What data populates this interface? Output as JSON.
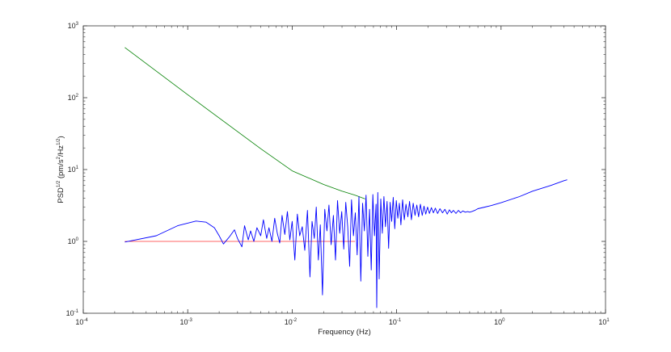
{
  "chart_data": {
    "type": "line",
    "title": "",
    "xlabel": "Frequency (Hz)",
    "ylabel": {
      "t1": "PSD",
      "t1_sup": "1/2",
      "t2": " (pm/s",
      "t2_sup": "2",
      "t3": "/Hz",
      "t3_sup": "1/2",
      "t4": ")"
    },
    "xscale": "log",
    "yscale": "log",
    "xlim": [
      0.0001,
      10
    ],
    "ylim": [
      0.1,
      1000
    ],
    "grid": false,
    "x_ticks": [
      {
        "base": "10",
        "exp": "-4",
        "value": 0.0001
      },
      {
        "base": "10",
        "exp": "-3",
        "value": 0.001
      },
      {
        "base": "10",
        "exp": "-2",
        "value": 0.01
      },
      {
        "base": "10",
        "exp": "-1",
        "value": 0.1
      },
      {
        "base": "10",
        "exp": "0",
        "value": 1
      },
      {
        "base": "10",
        "exp": "1",
        "value": 10
      }
    ],
    "y_ticks": [
      {
        "base": "10",
        "exp": "-1",
        "value": 0.1
      },
      {
        "base": "10",
        "exp": "0",
        "value": 1
      },
      {
        "base": "10",
        "exp": "1",
        "value": 10
      },
      {
        "base": "10",
        "exp": "2",
        "value": 100
      },
      {
        "base": "10",
        "exp": "3",
        "value": 1000
      }
    ],
    "series": [
      {
        "color": "#008000",
        "x": [
          0.00025,
          0.001,
          0.005,
          0.01,
          0.02,
          0.03,
          0.04,
          0.05
        ],
        "y": [
          500,
          110,
          19.5,
          9.6,
          6.2,
          5.0,
          4.4,
          3.9
        ]
      },
      {
        "color": "#ff3333",
        "x": [
          0.00025,
          0.04
        ],
        "y": [
          1.0,
          1.0
        ]
      },
      {
        "color": "#0000ff",
        "x": [
          0.00025,
          0.0005,
          0.0008,
          0.0012,
          0.0015,
          0.0018,
          0.002,
          0.0022,
          0.0025,
          0.0028,
          0.003,
          0.0033,
          0.0035,
          0.0038,
          0.004,
          0.0043,
          0.0046,
          0.005,
          0.0053,
          0.0057,
          0.006,
          0.0064,
          0.0068,
          0.0072,
          0.0076,
          0.008,
          0.0085,
          0.009,
          0.0095,
          0.01,
          0.0106,
          0.0112,
          0.0118,
          0.0125,
          0.0132,
          0.014,
          0.0148,
          0.0155,
          0.0163,
          0.017,
          0.0178,
          0.0186,
          0.0195,
          0.0205,
          0.0215,
          0.0225,
          0.0236,
          0.0248,
          0.026,
          0.0272,
          0.0285,
          0.0298,
          0.0312,
          0.0326,
          0.034,
          0.0355,
          0.037,
          0.0386,
          0.0402,
          0.0419,
          0.0436,
          0.0454,
          0.0472,
          0.0491,
          0.051,
          0.053,
          0.055,
          0.0571,
          0.0592,
          0.0614,
          0.0636,
          0.0645,
          0.066,
          0.068,
          0.0705,
          0.073,
          0.0756,
          0.0782,
          0.081,
          0.0838,
          0.0867,
          0.0897,
          0.0928,
          0.096,
          0.0993,
          0.1027,
          0.1062,
          0.11,
          0.114,
          0.1185,
          0.123,
          0.128,
          0.133,
          0.1385,
          0.144,
          0.15,
          0.156,
          0.1625,
          0.169,
          0.176,
          0.183,
          0.19,
          0.198,
          0.206,
          0.215,
          0.225,
          0.235,
          0.247,
          0.26,
          0.275,
          0.29,
          0.305,
          0.32,
          0.335,
          0.35,
          0.37,
          0.39,
          0.41,
          0.43,
          0.455,
          0.48,
          0.5,
          0.53,
          0.56,
          0.6,
          0.7,
          0.8,
          1.0,
          1.5,
          2.0,
          3.0,
          4.0,
          4.3
        ],
        "y": [
          0.98,
          1.2,
          1.65,
          1.92,
          1.85,
          1.55,
          1.2,
          0.92,
          1.15,
          1.45,
          1.1,
          0.84,
          1.65,
          1.05,
          1.4,
          1.0,
          1.55,
          1.2,
          2.0,
          1.1,
          1.55,
          1.0,
          2.1,
          1.3,
          0.95,
          2.3,
          1.25,
          2.6,
          1.05,
          1.9,
          0.55,
          2.4,
          1.2,
          1.6,
          0.75,
          2.7,
          0.32,
          1.9,
          1.1,
          3.0,
          0.55,
          1.7,
          0.18,
          2.8,
          1.4,
          3.2,
          0.9,
          2.3,
          0.55,
          3.7,
          1.3,
          2.6,
          0.78,
          3.5,
          1.6,
          0.45,
          3.8,
          1.2,
          2.5,
          0.65,
          4.2,
          0.28,
          3.4,
          1.4,
          4.4,
          0.62,
          2.8,
          0.4,
          4.5,
          1.2,
          3.3,
          0.12,
          4.8,
          0.3,
          3.9,
          1.3,
          4.2,
          1.6,
          3.6,
          0.8,
          3.5,
          1.9,
          4.1,
          1.5,
          3.7,
          2.1,
          3.4,
          1.7,
          3.8,
          2.0,
          3.3,
          2.2,
          3.6,
          2.0,
          3.4,
          2.3,
          3.2,
          2.2,
          3.3,
          2.3,
          3.1,
          2.4,
          3.0,
          2.45,
          2.95,
          2.5,
          2.9,
          2.45,
          2.85,
          2.5,
          2.8,
          2.4,
          2.75,
          2.5,
          2.7,
          2.45,
          2.7,
          2.5,
          2.65,
          2.55,
          2.6,
          2.55,
          2.62,
          2.7,
          2.85,
          3.0,
          3.15,
          3.45,
          4.2,
          5.0,
          6.0,
          7.0,
          7.2
        ]
      }
    ]
  }
}
